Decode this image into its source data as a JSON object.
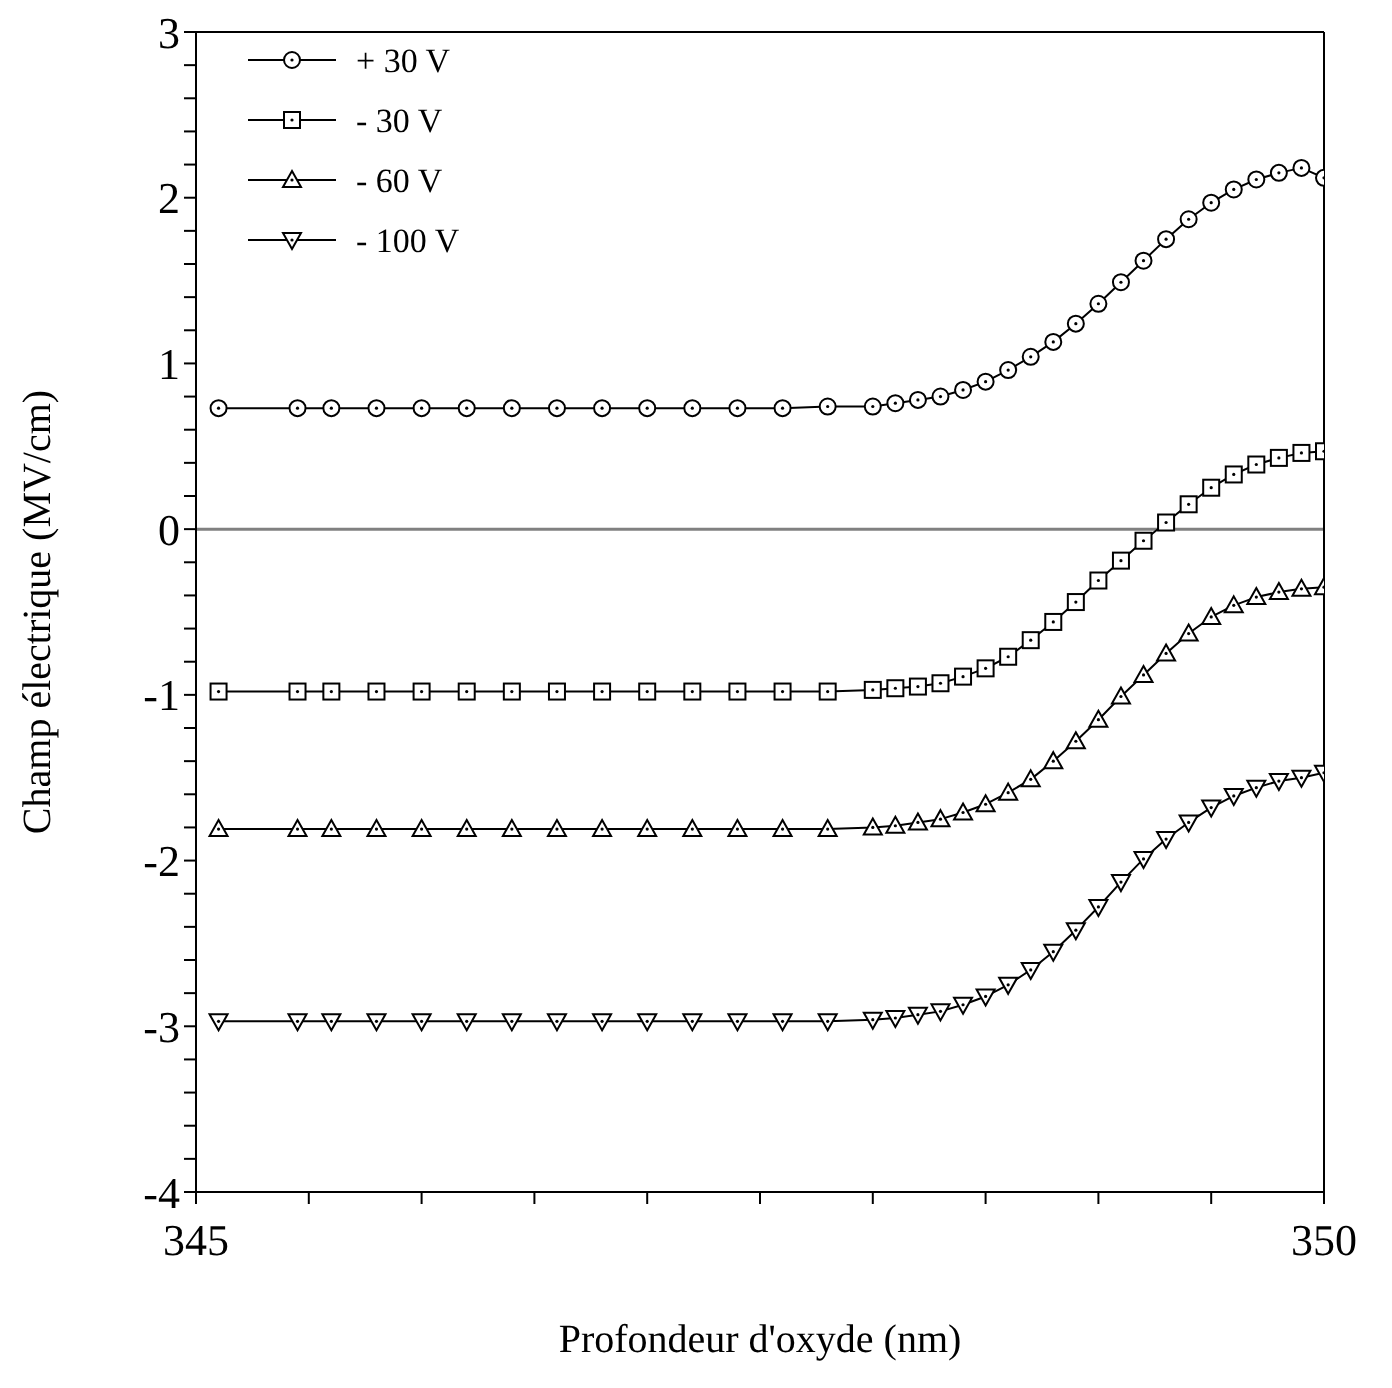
{
  "chart_data": {
    "type": "line",
    "xlabel": "Profondeur d'oxyde (nm)",
    "ylabel": "Champ électrique (MV/cm)",
    "xlim": [
      345,
      350
    ],
    "xticks": [
      345,
      {
        "value": 345.5,
        "label": null
      },
      {
        "value": 346,
        "label": null
      },
      {
        "value": 346.5,
        "label": null
      },
      {
        "value": 347,
        "label": null
      },
      {
        "value": 347.5,
        "label": null
      },
      {
        "value": 348,
        "label": null
      },
      {
        "value": 348.5,
        "label": null
      },
      {
        "value": 349,
        "label": null
      },
      {
        "value": 349.5,
        "label": null
      },
      350
    ],
    "ylim": [
      -4,
      3
    ],
    "yticks": [
      -4,
      {
        "value": -3.8,
        "label": null
      },
      {
        "value": -3.6,
        "label": null
      },
      {
        "value": -3.4,
        "label": null
      },
      {
        "value": -3.2,
        "label": null
      },
      -3,
      {
        "value": -2.8,
        "label": null
      },
      {
        "value": -2.6,
        "label": null
      },
      {
        "value": -2.4,
        "label": null
      },
      {
        "value": -2.2,
        "label": null
      },
      -2,
      {
        "value": -1.8,
        "label": null
      },
      {
        "value": -1.6,
        "label": null
      },
      {
        "value": -1.4,
        "label": null
      },
      {
        "value": -1.2,
        "label": null
      },
      -1,
      {
        "value": -0.8,
        "label": null
      },
      {
        "value": -0.6,
        "label": null
      },
      {
        "value": -0.4,
        "label": null
      },
      {
        "value": -0.2,
        "label": null
      },
      0,
      {
        "value": 0.2,
        "label": null
      },
      {
        "value": 0.4,
        "label": null
      },
      {
        "value": 0.6,
        "label": null
      },
      {
        "value": 0.8,
        "label": null
      },
      1,
      {
        "value": 1.2,
        "label": null
      },
      {
        "value": 1.4,
        "label": null
      },
      {
        "value": 1.6,
        "label": null
      },
      {
        "value": 1.8,
        "label": null
      },
      2,
      {
        "value": 2.2,
        "label": null
      },
      {
        "value": 2.4,
        "label": null
      },
      {
        "value": 2.6,
        "label": null
      },
      {
        "value": 2.8,
        "label": null
      },
      3
    ],
    "x": [
      345.1,
      345.45,
      345.6,
      345.8,
      346.0,
      346.2,
      346.4,
      346.6,
      346.8,
      347.0,
      347.2,
      347.4,
      347.6,
      347.8,
      348.0,
      348.1,
      348.2,
      348.3,
      348.4,
      348.5,
      348.6,
      348.7,
      348.8,
      348.9,
      349.0,
      349.1,
      349.2,
      349.3,
      349.4,
      349.5,
      349.6,
      349.7,
      349.8,
      349.9,
      350.0
    ],
    "series": [
      {
        "name": "+ 30 V",
        "color": "#000000",
        "marker": "circle",
        "values": [
          0.73,
          0.73,
          0.73,
          0.73,
          0.73,
          0.73,
          0.73,
          0.73,
          0.73,
          0.73,
          0.73,
          0.73,
          0.73,
          0.74,
          0.74,
          0.76,
          0.78,
          0.8,
          0.84,
          0.89,
          0.96,
          1.04,
          1.13,
          1.24,
          1.36,
          1.49,
          1.62,
          1.75,
          1.87,
          1.97,
          2.05,
          2.11,
          2.15,
          2.18,
          2.12
        ]
      },
      {
        "name": "- 30 V",
        "color": "#000000",
        "marker": "square",
        "values": [
          -0.98,
          -0.98,
          -0.98,
          -0.98,
          -0.98,
          -0.98,
          -0.98,
          -0.98,
          -0.98,
          -0.98,
          -0.98,
          -0.98,
          -0.98,
          -0.98,
          -0.97,
          -0.96,
          -0.95,
          -0.93,
          -0.89,
          -0.84,
          -0.77,
          -0.67,
          -0.56,
          -0.44,
          -0.31,
          -0.19,
          -0.07,
          0.04,
          0.15,
          0.25,
          0.33,
          0.39,
          0.43,
          0.46,
          0.47
        ]
      },
      {
        "name": "- 60 V",
        "color": "#000000",
        "marker": "triangle",
        "values": [
          -1.81,
          -1.81,
          -1.81,
          -1.81,
          -1.81,
          -1.81,
          -1.81,
          -1.81,
          -1.81,
          -1.81,
          -1.81,
          -1.81,
          -1.81,
          -1.81,
          -1.8,
          -1.79,
          -1.77,
          -1.75,
          -1.71,
          -1.66,
          -1.59,
          -1.51,
          -1.4,
          -1.28,
          -1.15,
          -1.01,
          -0.88,
          -0.75,
          -0.63,
          -0.53,
          -0.46,
          -0.41,
          -0.38,
          -0.36,
          -0.35
        ]
      },
      {
        "name": "- 100 V",
        "color": "#000000",
        "marker": "triangle-down",
        "values": [
          -2.97,
          -2.97,
          -2.97,
          -2.97,
          -2.97,
          -2.97,
          -2.97,
          -2.97,
          -2.97,
          -2.97,
          -2.97,
          -2.97,
          -2.97,
          -2.97,
          -2.96,
          -2.95,
          -2.93,
          -2.91,
          -2.87,
          -2.82,
          -2.75,
          -2.66,
          -2.55,
          -2.42,
          -2.28,
          -2.13,
          -1.99,
          -1.87,
          -1.77,
          -1.68,
          -1.61,
          -1.56,
          -1.52,
          -1.5,
          -1.47
        ]
      }
    ],
    "ref_lines": [
      {
        "axis": "y",
        "value": 0,
        "color": "#808080"
      }
    ],
    "legend": "top left",
    "grid": false
  }
}
